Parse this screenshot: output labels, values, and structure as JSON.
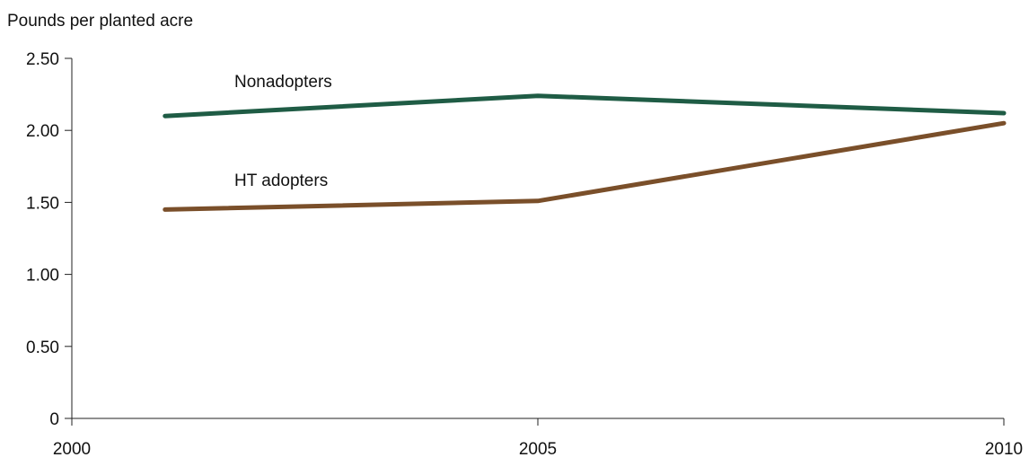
{
  "chart_data": {
    "type": "line",
    "ylabel": "Pounds per planted acre",
    "xlabel": "",
    "x_ticks": [
      "2000",
      "2005",
      "2010"
    ],
    "y_ticks": [
      "0",
      "0.50",
      "1.00",
      "1.50",
      "2.00",
      "2.50"
    ],
    "xlim": [
      2000,
      2010
    ],
    "ylim": [
      0,
      2.5
    ],
    "grid": false,
    "legend": "inline labels",
    "series": [
      {
        "name": "Nonadopters",
        "color": "#1f5c45",
        "x": [
          2001,
          2005,
          2010
        ],
        "y": [
          2.1,
          2.24,
          2.12
        ]
      },
      {
        "name": "HT adopters",
        "color": "#7a4f2a",
        "x": [
          2001,
          2005,
          2010
        ],
        "y": [
          1.45,
          1.51,
          2.05
        ]
      }
    ]
  }
}
